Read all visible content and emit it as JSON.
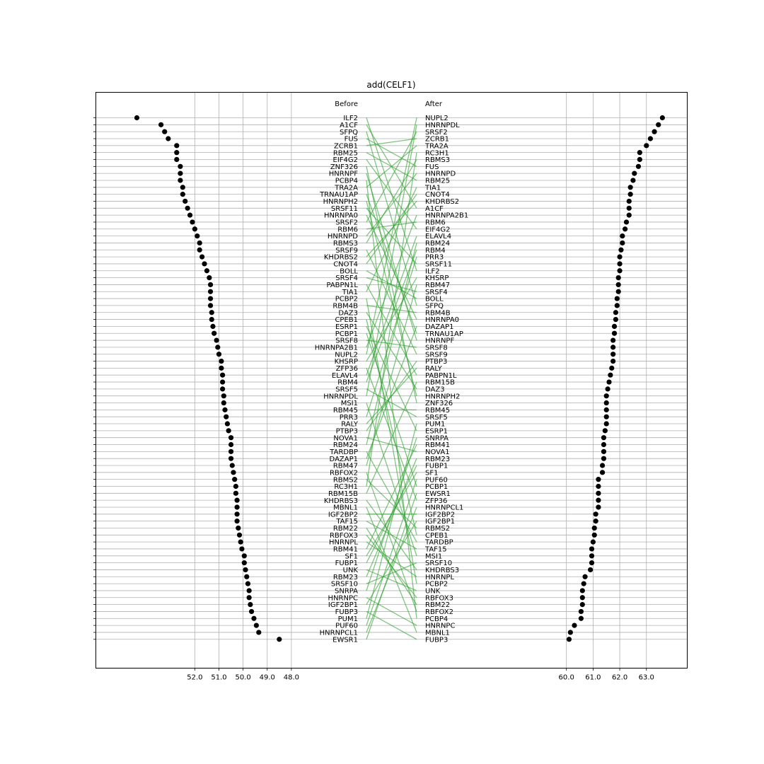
{
  "chart_data": {
    "type": "scatter",
    "title": "add(CELF1)",
    "before_header": "Before",
    "after_header": "After",
    "left_axis": {
      "ticks": [
        52.0,
        51.0,
        50.0,
        49.0,
        48.0
      ],
      "tick_labels": [
        "52.0",
        "51.0",
        "50.0",
        "49.0",
        "48.0"
      ],
      "direction": "reversed",
      "xlim": [
        55.0,
        47.0
      ]
    },
    "right_axis": {
      "ticks": [
        60.0,
        61.0,
        62.0,
        63.0
      ],
      "tick_labels": [
        "60.0",
        "61.0",
        "62.0",
        "63.0"
      ],
      "xlim": [
        56.4,
        64.2
      ]
    },
    "grid": true,
    "connector_color": "#2ca02c",
    "point_color": "#000000",
    "before": [
      {
        "name": "ILF2",
        "value": 54.4
      },
      {
        "name": "A1CF",
        "value": 53.4
      },
      {
        "name": "SFPQ",
        "value": 53.25
      },
      {
        "name": "FUS",
        "value": 53.1
      },
      {
        "name": "ZCRB1",
        "value": 52.75
      },
      {
        "name": "RBM25",
        "value": 52.75
      },
      {
        "name": "EIF4G2",
        "value": 52.75
      },
      {
        "name": "ZNF326",
        "value": 52.6
      },
      {
        "name": "HNRNPF",
        "value": 52.6
      },
      {
        "name": "PCBP4",
        "value": 52.6
      },
      {
        "name": "TRA2A",
        "value": 52.5
      },
      {
        "name": "TRNAU1AP",
        "value": 52.5
      },
      {
        "name": "HNRNPH2",
        "value": 52.4
      },
      {
        "name": "SRSF11",
        "value": 52.3
      },
      {
        "name": "HNRNPA0",
        "value": 52.2
      },
      {
        "name": "SRSF2",
        "value": 52.1
      },
      {
        "name": "RBM6",
        "value": 52.0
      },
      {
        "name": "HNRNPD",
        "value": 51.9
      },
      {
        "name": "RBMS3",
        "value": 51.8
      },
      {
        "name": "SRSF9",
        "value": 51.8
      },
      {
        "name": "KHDRBS2",
        "value": 51.7
      },
      {
        "name": "CNOT4",
        "value": 51.6
      },
      {
        "name": "BOLL",
        "value": 51.5
      },
      {
        "name": "SRSF4",
        "value": 51.4
      },
      {
        "name": "PABPN1L",
        "value": 51.35
      },
      {
        "name": "TIA1",
        "value": 51.35
      },
      {
        "name": "PCBP2",
        "value": 51.35
      },
      {
        "name": "RBM4B",
        "value": 51.35
      },
      {
        "name": "DAZ3",
        "value": 51.3
      },
      {
        "name": "CPEB1",
        "value": 51.3
      },
      {
        "name": "ESRP1",
        "value": 51.25
      },
      {
        "name": "PCBP1",
        "value": 51.2
      },
      {
        "name": "SRSF8",
        "value": 51.1
      },
      {
        "name": "HNRNPA2B1",
        "value": 51.05
      },
      {
        "name": "NUPL2",
        "value": 51.0
      },
      {
        "name": "KHSRP",
        "value": 50.9
      },
      {
        "name": "ZFP36",
        "value": 50.9
      },
      {
        "name": "ELAVL4",
        "value": 50.85
      },
      {
        "name": "RBM4",
        "value": 50.85
      },
      {
        "name": "SRSF5",
        "value": 50.85
      },
      {
        "name": "HNRNPDL",
        "value": 50.8
      },
      {
        "name": "MSI1",
        "value": 50.8
      },
      {
        "name": "RBM45",
        "value": 50.75
      },
      {
        "name": "PRR3",
        "value": 50.7
      },
      {
        "name": "RALY",
        "value": 50.65
      },
      {
        "name": "PTBP3",
        "value": 50.6
      },
      {
        "name": "NOVA1",
        "value": 50.5
      },
      {
        "name": "RBM24",
        "value": 50.5
      },
      {
        "name": "TARDBP",
        "value": 50.5
      },
      {
        "name": "DAZAP1",
        "value": 50.5
      },
      {
        "name": "RBM47",
        "value": 50.45
      },
      {
        "name": "RBFOX2",
        "value": 50.4
      },
      {
        "name": "RBMS2",
        "value": 50.35
      },
      {
        "name": "RC3H1",
        "value": 50.3
      },
      {
        "name": "RBM15B",
        "value": 50.3
      },
      {
        "name": "KHDRBS3",
        "value": 50.25
      },
      {
        "name": "MBNL1",
        "value": 50.25
      },
      {
        "name": "IGF2BP2",
        "value": 50.25
      },
      {
        "name": "TAF15",
        "value": 50.25
      },
      {
        "name": "RBM22",
        "value": 50.2
      },
      {
        "name": "RBFOX3",
        "value": 50.15
      },
      {
        "name": "HNRNPL",
        "value": 50.1
      },
      {
        "name": "RBM41",
        "value": 50.05
      },
      {
        "name": "SF1",
        "value": 49.95
      },
      {
        "name": "FUBP1",
        "value": 49.95
      },
      {
        "name": "UNK",
        "value": 49.9
      },
      {
        "name": "RBM23",
        "value": 49.85
      },
      {
        "name": "SRSF10",
        "value": 49.8
      },
      {
        "name": "SNRPA",
        "value": 49.75
      },
      {
        "name": "HNRNPC",
        "value": 49.75
      },
      {
        "name": "IGF2BP1",
        "value": 49.7
      },
      {
        "name": "FUBP3",
        "value": 49.65
      },
      {
        "name": "PUM1",
        "value": 49.55
      },
      {
        "name": "PUF60",
        "value": 49.45
      },
      {
        "name": "HNRNPCL1",
        "value": 49.35
      },
      {
        "name": "EWSR1",
        "value": 48.5
      }
    ],
    "after": [
      {
        "name": "NUPL2",
        "value": 63.6
      },
      {
        "name": "HNRNPDL",
        "value": 63.45
      },
      {
        "name": "SRSF2",
        "value": 63.3
      },
      {
        "name": "ZCRB1",
        "value": 63.15
      },
      {
        "name": "TRA2A",
        "value": 63.0
      },
      {
        "name": "RC3H1",
        "value": 62.75
      },
      {
        "name": "RBMS3",
        "value": 62.75
      },
      {
        "name": "FUS",
        "value": 62.7
      },
      {
        "name": "HNRNPD",
        "value": 62.55
      },
      {
        "name": "RBM25",
        "value": 62.5
      },
      {
        "name": "TIA1",
        "value": 62.4
      },
      {
        "name": "CNOT4",
        "value": 62.4
      },
      {
        "name": "KHDRBS2",
        "value": 62.35
      },
      {
        "name": "A1CF",
        "value": 62.35
      },
      {
        "name": "HNRNPA2B1",
        "value": 62.35
      },
      {
        "name": "RBM6",
        "value": 62.25
      },
      {
        "name": "EIF4G2",
        "value": 62.2
      },
      {
        "name": "ELAVL4",
        "value": 62.1
      },
      {
        "name": "RBM24",
        "value": 62.1
      },
      {
        "name": "RBM4",
        "value": 62.05
      },
      {
        "name": "PRR3",
        "value": 62.0
      },
      {
        "name": "SRSF11",
        "value": 62.0
      },
      {
        "name": "ILF2",
        "value": 62.0
      },
      {
        "name": "KHSRP",
        "value": 61.95
      },
      {
        "name": "RBM47",
        "value": 61.95
      },
      {
        "name": "SRSF4",
        "value": 61.95
      },
      {
        "name": "BOLL",
        "value": 61.9
      },
      {
        "name": "SFPQ",
        "value": 61.9
      },
      {
        "name": "RBM4B",
        "value": 61.85
      },
      {
        "name": "HNRNPA0",
        "value": 61.85
      },
      {
        "name": "DAZAP1",
        "value": 61.8
      },
      {
        "name": "TRNAU1AP",
        "value": 61.8
      },
      {
        "name": "HNRNPF",
        "value": 61.75
      },
      {
        "name": "SRSF8",
        "value": 61.75
      },
      {
        "name": "SRSF9",
        "value": 61.75
      },
      {
        "name": "PTBP3",
        "value": 61.75
      },
      {
        "name": "RALY",
        "value": 61.7
      },
      {
        "name": "PABPN1L",
        "value": 61.65
      },
      {
        "name": "RBM15B",
        "value": 61.6
      },
      {
        "name": "DAZ3",
        "value": 61.55
      },
      {
        "name": "HNRNPH2",
        "value": 61.5
      },
      {
        "name": "ZNF326",
        "value": 61.5
      },
      {
        "name": "RBM45",
        "value": 61.5
      },
      {
        "name": "SRSF5",
        "value": 61.5
      },
      {
        "name": "PUM1",
        "value": 61.5
      },
      {
        "name": "ESRP1",
        "value": 61.45
      },
      {
        "name": "SNRPA",
        "value": 61.4
      },
      {
        "name": "RBM41",
        "value": 61.4
      },
      {
        "name": "NOVA1",
        "value": 61.4
      },
      {
        "name": "RBM23",
        "value": 61.4
      },
      {
        "name": "FUBP1",
        "value": 61.35
      },
      {
        "name": "SF1",
        "value": 61.35
      },
      {
        "name": "PUF60",
        "value": 61.2
      },
      {
        "name": "PCBP1",
        "value": 61.2
      },
      {
        "name": "EWSR1",
        "value": 61.2
      },
      {
        "name": "ZFP36",
        "value": 61.2
      },
      {
        "name": "HNRNPCL1",
        "value": 61.2
      },
      {
        "name": "IGF2BP2",
        "value": 61.1
      },
      {
        "name": "IGF2BP1",
        "value": 61.1
      },
      {
        "name": "RBMS2",
        "value": 61.05
      },
      {
        "name": "CPEB1",
        "value": 61.05
      },
      {
        "name": "TARDBP",
        "value": 61.0
      },
      {
        "name": "TAF15",
        "value": 60.95
      },
      {
        "name": "MSI1",
        "value": 60.95
      },
      {
        "name": "SRSF10",
        "value": 60.95
      },
      {
        "name": "KHDRBS3",
        "value": 60.9
      },
      {
        "name": "HNRNPL",
        "value": 60.7
      },
      {
        "name": "PCBP2",
        "value": 60.65
      },
      {
        "name": "UNK",
        "value": 60.6
      },
      {
        "name": "RBFOX3",
        "value": 60.6
      },
      {
        "name": "RBM22",
        "value": 60.6
      },
      {
        "name": "RBFOX2",
        "value": 60.55
      },
      {
        "name": "PCBP4",
        "value": 60.55
      },
      {
        "name": "HNRNPC",
        "value": 60.3
      },
      {
        "name": "MBNL1",
        "value": 60.15
      },
      {
        "name": "FUBP3",
        "value": 60.1
      }
    ]
  }
}
